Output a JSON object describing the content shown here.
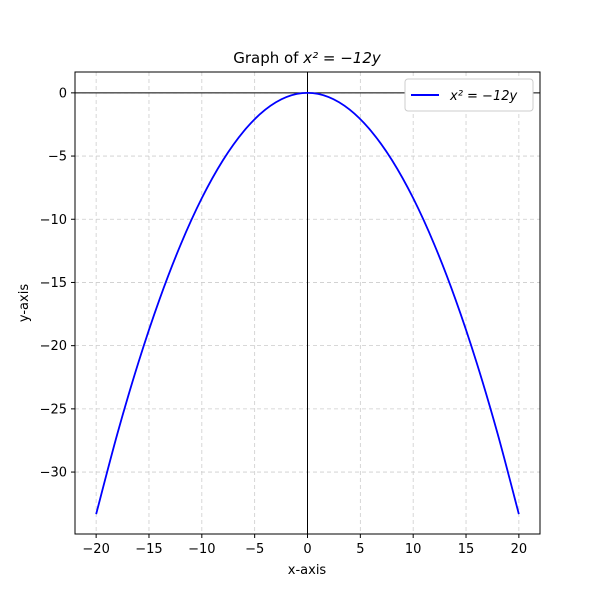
{
  "chart_data": {
    "type": "line",
    "title_prefix": "Graph of ",
    "title_equation": "x² = −12y",
    "xlabel": "x-axis",
    "ylabel": "y-axis",
    "xlim": [
      -22,
      22
    ],
    "ylim": [
      -34.9,
      1.65
    ],
    "xticks": [
      -20,
      -15,
      -10,
      -5,
      0,
      5,
      10,
      15,
      20
    ],
    "yticks": [
      0,
      -5,
      -10,
      -15,
      -20,
      -25,
      -30
    ],
    "xtick_labels": [
      "−20",
      "−15",
      "−10",
      "−5",
      "0",
      "5",
      "10",
      "15",
      "20"
    ],
    "ytick_labels": [
      "0",
      "−5",
      "−10",
      "−15",
      "−20",
      "−25",
      "−30"
    ],
    "grid": true,
    "legend_position": "top-right",
    "series": [
      {
        "name": "x² = −12y",
        "color": "#0000ff",
        "x": [
          -20,
          -18,
          -16,
          -14,
          -12,
          -10,
          -8,
          -6,
          -4,
          -2,
          0,
          2,
          4,
          6,
          8,
          10,
          12,
          14,
          16,
          18,
          20
        ],
        "y": [
          -33.33,
          -27,
          -21.33,
          -16.33,
          -12,
          -8.33,
          -5.33,
          -3,
          -1.33,
          -0.33,
          0,
          -0.33,
          -1.33,
          -3,
          -5.33,
          -8.33,
          -12,
          -16.33,
          -21.33,
          -27,
          -33.33
        ]
      }
    ]
  }
}
